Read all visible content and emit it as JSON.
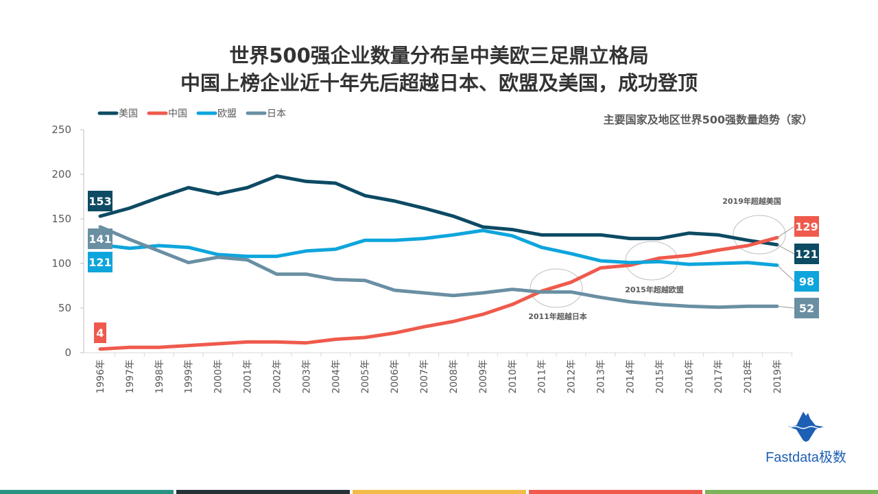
{
  "title_line1": "世界500强企业数量分布呈中美欧三足鼎立格局",
  "title_line2": "中国上榜企业近十年先后超越日本、欧盟及美国，成功登顶",
  "chart_data": {
    "type": "line",
    "title": "主要国家及地区世界500强数量趋势（家）",
    "xlabel": "",
    "ylabel": "",
    "ylim": [
      0,
      250
    ],
    "yticks": [
      0,
      50,
      100,
      150,
      200,
      250
    ],
    "grid": false,
    "legend": "top-left",
    "categories": [
      "1996年",
      "1997年",
      "1998年",
      "1999年",
      "2000年",
      "2001年",
      "2002年",
      "2003年",
      "2004年",
      "2005年",
      "2006年",
      "2007年",
      "2008年",
      "2009年",
      "2010年",
      "2011年",
      "2012年",
      "2013年",
      "2014年",
      "2015年",
      "2016年",
      "2017年",
      "2018年",
      "2019年"
    ],
    "series": [
      {
        "name": "美国",
        "color": "#0d4a63",
        "values": [
          153,
          162,
          174,
          185,
          178,
          185,
          198,
          192,
          190,
          176,
          170,
          162,
          153,
          141,
          138,
          132,
          132,
          132,
          128,
          128,
          134,
          132,
          126,
          121
        ],
        "start_label": "153",
        "end_label": "121"
      },
      {
        "name": "中国",
        "color": "#ef5a4c",
        "values": [
          4,
          6,
          6,
          8,
          10,
          12,
          12,
          11,
          15,
          17,
          22,
          29,
          35,
          43,
          54,
          69,
          79,
          95,
          98,
          106,
          109,
          115,
          120,
          129
        ],
        "start_label": "4",
        "end_label": "129"
      },
      {
        "name": "欧盟",
        "color": "#0ea5dc",
        "values": [
          121,
          117,
          120,
          118,
          110,
          108,
          108,
          114,
          116,
          126,
          126,
          128,
          132,
          137,
          131,
          118,
          111,
          103,
          101,
          102,
          99,
          100,
          101,
          98
        ],
        "start_label": "121",
        "end_label": "98"
      },
      {
        "name": "日本",
        "color": "#6a8fa3",
        "values": [
          141,
          127,
          114,
          101,
          107,
          104,
          88,
          88,
          82,
          81,
          70,
          67,
          64,
          67,
          71,
          68,
          68,
          62,
          57,
          54,
          52,
          51,
          52,
          52
        ],
        "start_label": "141",
        "end_label": "52"
      }
    ],
    "annotations": [
      {
        "text": "2011年超越日本",
        "year": "2011年"
      },
      {
        "text": "2015年超越欧盟",
        "year": "2015年"
      },
      {
        "text": "2019年超越美国",
        "year": "2019年"
      }
    ]
  },
  "logo": {
    "text": "Fastdata极数",
    "color": "#1d5fb4"
  },
  "footer_colors": [
    "#2a9283",
    "#263238",
    "#f3bc4a",
    "#ef5a4c",
    "#7cb35b"
  ]
}
